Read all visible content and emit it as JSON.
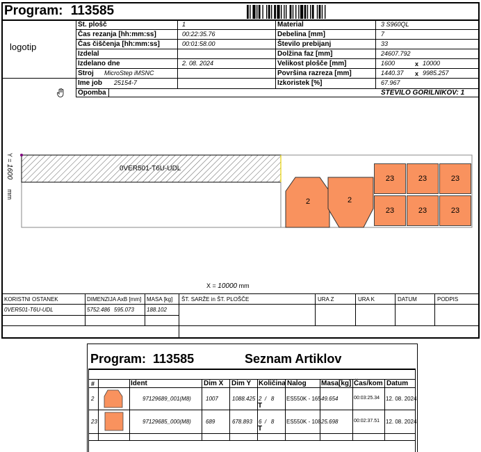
{
  "header": {
    "program_label": "Program:",
    "program_number": "113585",
    "logo_text": "logotip"
  },
  "info_left": [
    {
      "label": "Št. plošč",
      "value": "1"
    },
    {
      "label": "Čas rezanja [hh:mm:ss]",
      "value": "00:22:35.76"
    },
    {
      "label": "Čas čiščenja [hh:mm:ss]",
      "value": "00:01:58.00"
    },
    {
      "label": "Izdelal",
      "value": ""
    },
    {
      "label": "Izdelano dne",
      "value": "2. 08. 2024"
    },
    {
      "label": "Stroj",
      "value": "MicroStep iMSNC"
    },
    {
      "label": "Ime job",
      "value": "25154-7"
    },
    {
      "label": "Opomba",
      "value": ""
    }
  ],
  "info_right": [
    {
      "label": "Material",
      "value": "3 S960QL"
    },
    {
      "label": "Debelina [mm]",
      "value": "7"
    },
    {
      "label": "Število prebijanj",
      "value": "33"
    },
    {
      "label": "Dolžina faz [mm]",
      "value": "24607.792"
    },
    {
      "label": "Velikost plošče [mm]",
      "value": "1600",
      "value2": "10000"
    },
    {
      "label": "Površina razreza [mm]",
      "value": "1440.37",
      "value2": "9985.257"
    },
    {
      "label": "Izkoristek [%]",
      "value": "67.967"
    }
  ],
  "x_sep": "x",
  "gorilnikov": "ŠTEVILO GORILNIKOV: 1",
  "drawing": {
    "y_label": "Y = ",
    "y_value": "1600",
    "y_unit": "mm",
    "x_label": "X = ",
    "x_value": "10000",
    "x_unit": "mm",
    "remnant_label": "0VER501-T6U-UDL",
    "part_labels": [
      "2",
      "2",
      "23",
      "23",
      "23",
      "23",
      "23",
      "23"
    ]
  },
  "remnant_table": {
    "headers": [
      "KORISTNI OSTANEK",
      "DIMENZIJA AxB  [mm]",
      "MASA [kg]",
      "ŠT. SARŽE in ŠT. PLOŠČE",
      "URA Z",
      "URA K",
      "DATUM",
      "PODPIS"
    ],
    "row": {
      "name": "0VER501-T6U-UDL",
      "dim_a": "5752.486",
      "dim_b": "595.073",
      "mass": "188.102"
    }
  },
  "page2": {
    "program_label": "Program:",
    "program_number": "113585",
    "title": "Seznam Artiklov",
    "headers": [
      "#",
      "",
      "Ident",
      "Dim X",
      "Dim Y",
      "Količina",
      "Nalog",
      "Masa[kg]",
      "Čas/kom",
      "Datum"
    ],
    "rows": [
      {
        "num": "2",
        "ident": "97129689_001(M8)",
        "dimx": "1007",
        "dimy": "1088.425",
        "qty": "2",
        "sep": "/",
        "total": "8",
        "mark": "T",
        "nalog": "ES550K - 165",
        "mass": "49.654",
        "time": "00:03:25.34",
        "date": "12. 08. 2024"
      },
      {
        "num": "23",
        "ident": "97129685_000(M8)",
        "dimx": "689",
        "dimy": "678.893",
        "qty": "6",
        "sep": "/",
        "total": "8",
        "mark": "T",
        "nalog": "ES550K - 108",
        "mass": "25.698",
        "time": "00:02:37.51",
        "date": "12. 08. 2024"
      }
    ]
  }
}
